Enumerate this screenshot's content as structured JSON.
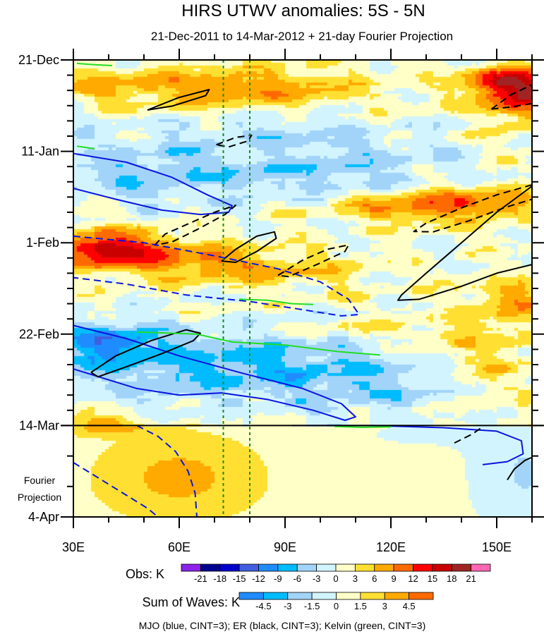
{
  "chart_data": {
    "type": "heatmap",
    "title": "HIRS UTWV anomalies: 5S - 5N",
    "subtitle": "21-Dec-2011 to 14-Mar-2012 + 21-day Fourier Projection",
    "xlabel": "",
    "ylabel": "",
    "x_range": [
      30,
      160
    ],
    "x_ticks": [
      30,
      60,
      90,
      120,
      150
    ],
    "x_tick_labels": [
      "30E",
      "60E",
      "90E",
      "120E",
      "150E"
    ],
    "y_range_days": [
      0,
      105
    ],
    "y_ticks": [
      0,
      21,
      42,
      63,
      84,
      105
    ],
    "y_tick_labels": [
      "21-Dec",
      "11-Jan",
      "1-Feb",
      "22-Feb",
      "14-Mar",
      "4-Apr"
    ],
    "projection_start_day": 84,
    "projection_label": [
      "Fourier",
      "Projection"
    ],
    "reference_longitudes": [
      72.5,
      80
    ],
    "obs_colorbar": {
      "label": "Obs: K",
      "levels": [
        -21,
        -18,
        -15,
        -12,
        -9,
        -6,
        -3,
        0,
        3,
        6,
        9,
        12,
        15,
        18,
        21
      ],
      "level_labels": [
        "-21",
        "-18",
        "-15",
        "-12",
        "-9",
        "-6",
        "-3",
        "0",
        "3",
        "6",
        "9",
        "12",
        "15",
        "18",
        "21"
      ],
      "colors": [
        "#8a22e8",
        "#00008f",
        "#0000cc",
        "#3f5fde",
        "#1e8cff",
        "#00bcff",
        "#a2d4fa",
        "#d2f4ff",
        "#ffffc8",
        "#ffe032",
        "#ffaa00",
        "#ff6a00",
        "#ff0000",
        "#c80000",
        "#a02424",
        "#ff66b4"
      ]
    },
    "waves_colorbar": {
      "label": "Sum of Waves: K",
      "levels": [
        -4.5,
        -3,
        -1.5,
        0,
        1.5,
        3,
        4.5
      ],
      "level_labels": [
        "-4.5",
        "-3",
        "-1.5",
        "0",
        "1.5",
        "3",
        "4.5"
      ],
      "colors": [
        "#1e8cff",
        "#00bcff",
        "#a2d4fa",
        "#d2f4ff",
        "#ffffc8",
        "#ffe032",
        "#ffaa00",
        "#ff6a00"
      ]
    },
    "footnote": "MJO (blue, CINT=3); ER (black, CINT=3); Kelvin (green, CINT=3)",
    "contours": [
      {
        "wave": "ER",
        "color": "#000000",
        "dashed": false,
        "points": [
          [
            51,
            11.5
          ],
          [
            60,
            8.6
          ],
          [
            68.5,
            6.8
          ],
          [
            67.5,
            8.2
          ],
          [
            58,
            10.6
          ],
          [
            51,
            11.5
          ]
        ]
      },
      {
        "wave": "ER",
        "color": "#000000",
        "dashed": true,
        "points": [
          [
            148.5,
            11.3
          ],
          [
            154,
            8
          ],
          [
            160,
            5.7
          ]
        ]
      },
      {
        "wave": "ER",
        "color": "#000000",
        "dashed": true,
        "points": [
          [
            160,
            10
          ],
          [
            154,
            10.8
          ],
          [
            148.5,
            11.3
          ]
        ]
      },
      {
        "wave": "ER",
        "color": "#000000",
        "dashed": true,
        "points": [
          [
            70.5,
            19.5
          ],
          [
            76,
            17.8
          ],
          [
            80.5,
            17.3
          ],
          [
            79.5,
            18.6
          ],
          [
            74,
            20
          ],
          [
            70.5,
            19.5
          ]
        ]
      },
      {
        "wave": "MJO",
        "color": "#0a14e0",
        "dashed": false,
        "points": [
          [
            30,
            21.5
          ],
          [
            45,
            23.5
          ],
          [
            58,
            27
          ],
          [
            68,
            31
          ],
          [
            75,
            33.5
          ],
          [
            74,
            35
          ],
          [
            66,
            35.5
          ],
          [
            55,
            34.5
          ],
          [
            42,
            32
          ],
          [
            30,
            29.5
          ]
        ]
      },
      {
        "wave": "ER",
        "color": "#000000",
        "dashed": true,
        "points": [
          [
            53,
            42.6
          ],
          [
            56,
            40
          ],
          [
            63,
            37.5
          ],
          [
            70,
            35
          ],
          [
            76,
            33.4
          ],
          [
            73,
            35.5
          ],
          [
            65,
            39
          ],
          [
            58,
            41.8
          ],
          [
            53,
            42.6
          ]
        ]
      },
      {
        "wave": "ER",
        "color": "#000000",
        "dashed": false,
        "points": [
          [
            72,
            46.2
          ],
          [
            76,
            43.5
          ],
          [
            82,
            40.5
          ],
          [
            87,
            39.5
          ],
          [
            87.5,
            41
          ],
          [
            82,
            44
          ],
          [
            76,
            46.5
          ],
          [
            72,
            46.2
          ]
        ]
      },
      {
        "wave": "ER",
        "color": "#000000",
        "dashed": true,
        "points": [
          [
            88,
            49.5
          ],
          [
            95,
            46
          ],
          [
            102,
            43.5
          ],
          [
            108,
            42.5
          ],
          [
            107,
            44
          ],
          [
            99,
            47
          ],
          [
            91,
            49.8
          ],
          [
            88,
            49.5
          ]
        ]
      },
      {
        "wave": "MJO",
        "color": "#0a14e0",
        "dashed": true,
        "points": [
          [
            30,
            40.5
          ],
          [
            50,
            42
          ],
          [
            70,
            45
          ],
          [
            88,
            48
          ],
          [
            100,
            51
          ],
          [
            108,
            55
          ],
          [
            111,
            58.5
          ],
          [
            106,
            58.8
          ],
          [
            92,
            57
          ],
          [
            80,
            55.5
          ],
          [
            62,
            54
          ],
          [
            45,
            51.5
          ],
          [
            30,
            50
          ]
        ]
      },
      {
        "wave": "MJO",
        "color": "#0a14e0",
        "dashed": false,
        "points": [
          [
            30,
            61
          ],
          [
            45,
            64
          ],
          [
            60,
            68
          ],
          [
            78,
            72
          ],
          [
            95,
            75.5
          ],
          [
            106,
            79
          ],
          [
            110,
            82
          ],
          [
            107,
            82.8
          ],
          [
            98,
            80.5
          ],
          [
            85,
            78
          ],
          [
            72,
            76.5
          ],
          [
            60,
            77
          ],
          [
            48,
            75.5
          ],
          [
            36,
            72.5
          ],
          [
            30,
            71
          ]
        ]
      },
      {
        "wave": "ER",
        "color": "#000000",
        "dashed": false,
        "points": [
          [
            35,
            71.8
          ],
          [
            42,
            68
          ],
          [
            52,
            64.5
          ],
          [
            62,
            62
          ],
          [
            66,
            62.8
          ],
          [
            64,
            64.5
          ],
          [
            55,
            67.5
          ],
          [
            45,
            70.5
          ],
          [
            37,
            72.8
          ],
          [
            35,
            71.8
          ]
        ]
      },
      {
        "wave": "ER",
        "color": "#000000",
        "dashed": false,
        "points": [
          [
            160,
            29
          ],
          [
            150,
            35
          ],
          [
            140,
            42
          ],
          [
            130,
            49
          ],
          [
            123,
            54
          ],
          [
            122,
            55.2
          ],
          [
            128,
            55
          ],
          [
            140,
            52
          ],
          [
            150,
            49
          ],
          [
            160,
            47
          ]
        ]
      },
      {
        "wave": "ER",
        "color": "#000000",
        "dashed": true,
        "points": [
          [
            160,
            28.7
          ],
          [
            150,
            31
          ],
          [
            140,
            34
          ],
          [
            130,
            37.5
          ],
          [
            126.5,
            39.4
          ],
          [
            132,
            39.5
          ],
          [
            142,
            37
          ],
          [
            152,
            34
          ],
          [
            160,
            32
          ]
        ]
      },
      {
        "wave": "MJO",
        "color": "#0a14e0",
        "dashed": false,
        "points": [
          [
            92,
            84
          ],
          [
            115,
            84
          ],
          [
            135,
            84.5
          ],
          [
            150,
            85.3
          ],
          [
            157,
            87.5
          ],
          [
            157.5,
            90.5
          ],
          [
            153,
            92.3
          ],
          [
            146,
            93
          ]
        ]
      },
      {
        "wave": "MJO",
        "color": "#0a14e0",
        "dashed": true,
        "points": [
          [
            48,
            84
          ],
          [
            54,
            86.5
          ],
          [
            59,
            90
          ],
          [
            62.5,
            94.5
          ],
          [
            64.5,
            99.5
          ],
          [
            65,
            105
          ]
        ]
      },
      {
        "wave": "MJO",
        "color": "#0a14e0",
        "dashed": true,
        "points": [
          [
            30,
            92.5
          ],
          [
            38,
            96.5
          ],
          [
            45,
            100
          ],
          [
            51,
            103
          ],
          [
            54,
            105
          ]
        ]
      },
      {
        "wave": "ER",
        "color": "#000000",
        "dashed": false,
        "points": [
          [
            153,
            96.5
          ],
          [
            155,
            94
          ],
          [
            158,
            92
          ],
          [
            160,
            91.3
          ]
        ]
      },
      {
        "wave": "ER",
        "color": "#000000",
        "dashed": true,
        "points": [
          [
            138,
            88
          ],
          [
            143,
            86
          ],
          [
            146,
            84.3
          ]
        ]
      },
      {
        "wave": "Kelvin",
        "color": "#22dd22",
        "dashed": false,
        "points": [
          [
            31,
            0.8
          ],
          [
            36,
            1.1
          ],
          [
            41,
            1.3
          ]
        ]
      },
      {
        "wave": "Kelvin",
        "color": "#22dd22",
        "dashed": false,
        "points": [
          [
            31,
            19.8
          ],
          [
            36,
            20.4
          ]
        ]
      },
      {
        "wave": "Kelvin",
        "color": "#22dd22",
        "dashed": false,
        "points": [
          [
            77,
            55
          ],
          [
            85,
            55.2
          ],
          [
            92,
            56
          ],
          [
            98,
            56.2
          ]
        ]
      },
      {
        "wave": "Kelvin",
        "color": "#22dd22",
        "dashed": false,
        "points": [
          [
            48,
            62.5
          ],
          [
            65,
            63
          ],
          [
            75,
            64.8
          ],
          [
            90,
            65.5
          ],
          [
            105,
            67
          ],
          [
            117,
            67.8
          ]
        ]
      },
      {
        "wave": "Kelvin",
        "color": "#22dd22",
        "dashed": false,
        "points": [
          [
            104,
            84.2
          ],
          [
            112,
            84.4
          ],
          [
            120,
            84.3
          ]
        ]
      }
    ]
  }
}
